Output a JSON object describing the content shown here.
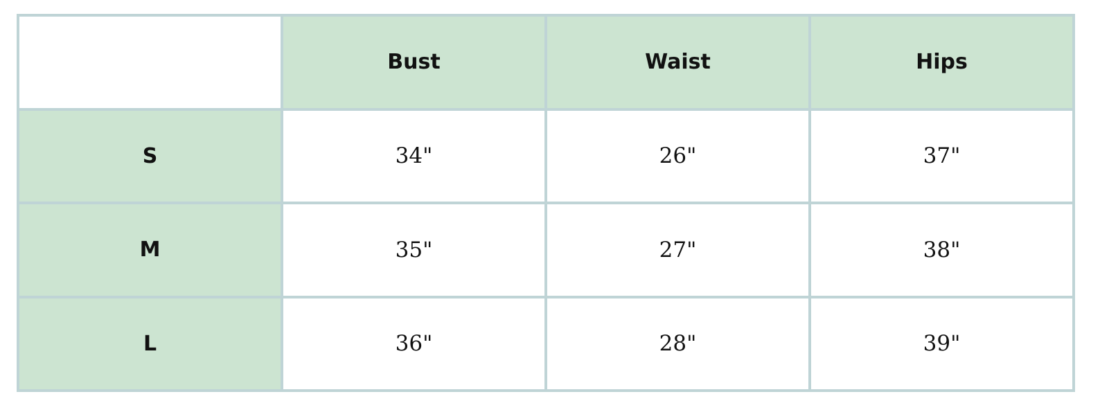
{
  "table": {
    "columns": [
      "",
      "Bust",
      "Waist",
      "Hips"
    ],
    "rows": [
      {
        "size": "S",
        "values": [
          "34\"",
          "26\"",
          "37\""
        ]
      },
      {
        "size": "M",
        "values": [
          "35\"",
          "27\"",
          "38\""
        ]
      },
      {
        "size": "L",
        "values": [
          "36\"",
          "28\"",
          "39\""
        ]
      }
    ]
  },
  "colors": {
    "header_bg": "#cce4d1",
    "border": "#bfd4d6",
    "cell_bg": "#ffffff"
  }
}
